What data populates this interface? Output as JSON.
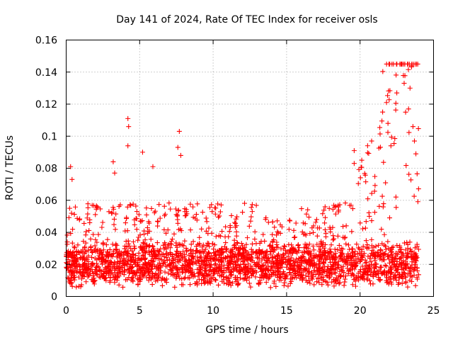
{
  "chart_data": {
    "type": "scatter",
    "title": "Day 141 of 2024, Rate Of TEC Index for receiver osls",
    "xlabel": "GPS time / hours",
    "ylabel": "ROTI / TECUs",
    "xlim": [
      0,
      25
    ],
    "ylim": [
      0,
      0.16
    ],
    "xticks": [
      0,
      5,
      10,
      15,
      20,
      25
    ],
    "yticks": [
      0,
      0.02,
      0.04,
      0.06,
      0.08,
      0.1,
      0.12,
      0.14,
      0.16
    ],
    "xtick_labels": [
      "0",
      "5",
      "10",
      "15",
      "20",
      "25"
    ],
    "ytick_labels": [
      "0",
      "0.02",
      "0.04",
      "0.06",
      "0.08",
      "0.1",
      "0.12",
      "0.14",
      "0.16"
    ],
    "grid": true,
    "marker": "+",
    "color": "#ff0000",
    "data_range": [
      0,
      24
    ],
    "baseline_band": [
      0.01,
      0.03
    ],
    "notable_points": [
      {
        "x": 0.3,
        "y": 0.081
      },
      {
        "x": 0.4,
        "y": 0.073
      },
      {
        "x": 3.2,
        "y": 0.084
      },
      {
        "x": 3.3,
        "y": 0.077
      },
      {
        "x": 4.2,
        "y": 0.111
      },
      {
        "x": 4.25,
        "y": 0.106
      },
      {
        "x": 4.2,
        "y": 0.094
      },
      {
        "x": 5.2,
        "y": 0.09
      },
      {
        "x": 5.9,
        "y": 0.081
      },
      {
        "x": 7.7,
        "y": 0.103
      },
      {
        "x": 7.6,
        "y": 0.093
      },
      {
        "x": 7.8,
        "y": 0.088
      },
      {
        "x": 19.6,
        "y": 0.091
      },
      {
        "x": 19.6,
        "y": 0.083
      },
      {
        "x": 21.8,
        "y": 0.121
      },
      {
        "x": 21.9,
        "y": 0.108
      },
      {
        "x": 22.1,
        "y": 0.094
      },
      {
        "x": 22.5,
        "y": 0.127
      },
      {
        "x": 23.0,
        "y": 0.133
      },
      {
        "x": 23.1,
        "y": 0.115
      },
      {
        "x": 23.3,
        "y": 0.117
      },
      {
        "x": 23.4,
        "y": 0.13
      },
      {
        "x": 23.5,
        "y": 0.144
      },
      {
        "x": 23.6,
        "y": 0.106
      },
      {
        "x": 23.7,
        "y": 0.097
      },
      {
        "x": 23.8,
        "y": 0.089
      }
    ]
  }
}
